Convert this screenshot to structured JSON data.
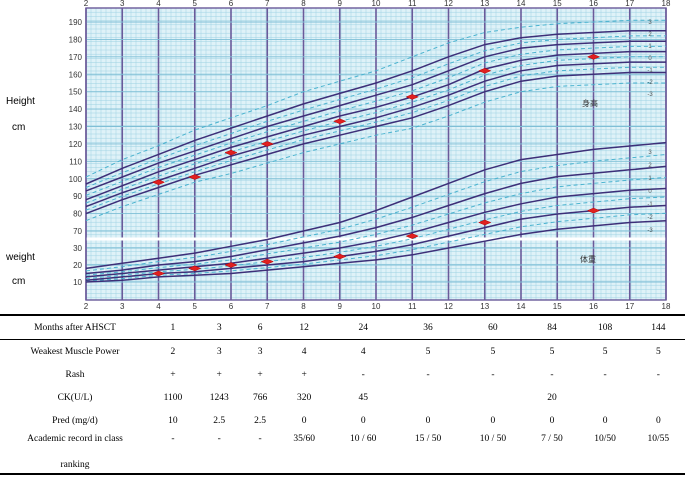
{
  "chart_data": {
    "type": "line",
    "title": "",
    "xlabel": "",
    "x_ticks_top": [
      "2",
      "3",
      "4",
      "5",
      "6",
      "7",
      "8",
      "9",
      "10",
      "11",
      "12",
      "13",
      "14",
      "15",
      "16",
      "17",
      "18"
    ],
    "x_ticks_bottom": [
      "2",
      "3",
      "4",
      "5",
      "6",
      "7",
      "8",
      "9",
      "10",
      "11",
      "12",
      "13",
      "14",
      "15",
      "16",
      "17",
      "18"
    ],
    "xlim": [
      2,
      18
    ],
    "height_axis": {
      "label": "Height",
      "unit": "cm",
      "ticks": [
        "190",
        "180",
        "170",
        "160",
        "150",
        "140",
        "130",
        "120",
        "110",
        "100",
        "90",
        "80",
        "70"
      ],
      "ylim": [
        65,
        200
      ]
    },
    "weight_axis": {
      "label": "weight",
      "unit": "cm",
      "ticks": [
        "30",
        "20",
        "10"
      ],
      "ylim": [
        0,
        40
      ]
    },
    "annotations": [
      "身高",
      "体重"
    ],
    "percentile_labels": [
      "3",
      "2",
      "1",
      "0",
      "-1",
      "-2",
      "-3"
    ],
    "patient_height_points": [
      {
        "x": 4,
        "y": 98
      },
      {
        "x": 5,
        "y": 101
      },
      {
        "x": 6,
        "y": 115
      },
      {
        "x": 7,
        "y": 120
      },
      {
        "x": 9,
        "y": 133
      },
      {
        "x": 11,
        "y": 147
      },
      {
        "x": 13,
        "y": 162
      },
      {
        "x": 16,
        "y": 170
      }
    ],
    "patient_weight_points": [
      {
        "x": 4,
        "y": 15
      },
      {
        "x": 5,
        "y": 18
      },
      {
        "x": 6,
        "y": 20
      },
      {
        "x": 7,
        "y": 22
      },
      {
        "x": 9,
        "y": 25
      },
      {
        "x": 11,
        "y": 37
      },
      {
        "x": 13,
        "y": 45
      },
      {
        "x": 16,
        "y": 52
      }
    ],
    "height_reference_curves": [
      {
        "y": [
          97,
          106,
          114,
          122,
          129,
          136,
          143,
          149,
          155,
          162,
          170,
          177,
          181,
          183,
          184,
          185,
          185
        ]
      },
      {
        "y": [
          93,
          101,
          109,
          116,
          123,
          130,
          136,
          142,
          148,
          154,
          162,
          170,
          175,
          177,
          178,
          179,
          179
        ]
      },
      {
        "y": [
          88,
          96,
          104,
          111,
          118,
          124,
          130,
          136,
          141,
          147,
          154,
          163,
          168,
          171,
          172,
          173,
          173
        ]
      },
      {
        "y": [
          84,
          92,
          99,
          106,
          113,
          119,
          125,
          130,
          135,
          141,
          148,
          156,
          162,
          165,
          166,
          167,
          167
        ]
      },
      {
        "y": [
          80,
          88,
          95,
          102,
          108,
          114,
          120,
          125,
          130,
          135,
          142,
          150,
          156,
          159,
          160,
          161,
          161
        ]
      }
    ],
    "weight_reference_curves": [
      {
        "y": [
          18,
          21,
          24,
          27,
          31,
          35,
          40,
          45,
          52,
          60,
          68,
          76,
          82,
          85,
          88,
          90,
          92
        ]
      },
      {
        "y": [
          15,
          17,
          20,
          22,
          25,
          29,
          33,
          37,
          42,
          48,
          55,
          62,
          68,
          72,
          74,
          76,
          78
        ]
      },
      {
        "y": [
          13,
          15,
          17,
          19,
          21,
          24,
          27,
          30,
          34,
          39,
          45,
          51,
          56,
          60,
          62,
          64,
          65
        ]
      },
      {
        "y": [
          11,
          13,
          15,
          16,
          18,
          20,
          22,
          25,
          28,
          32,
          37,
          42,
          47,
          50,
          52,
          54,
          55
        ]
      },
      {
        "y": [
          10,
          11,
          13,
          14,
          15,
          17,
          19,
          21,
          23,
          26,
          30,
          34,
          38,
          41,
          43,
          45,
          46
        ]
      }
    ],
    "colors": {
      "grid_bg": "#dff2f8",
      "grid_minor": "#9fd2e3",
      "grid_major": "#6a5a9a",
      "curve": "#3d2f78",
      "dashed_curve": "#4bb3cf",
      "marker": "#e02020"
    }
  },
  "table": {
    "header_label": "Months after AHSCT",
    "months": [
      "1",
      "3",
      "6",
      "12",
      "24",
      "36",
      "60",
      "84",
      "108",
      "144"
    ],
    "rows": [
      {
        "label": "Weakest Muscle Power",
        "values": [
          "2",
          "3",
          "3",
          "4",
          "4",
          "5",
          "5",
          "5",
          "5",
          "5"
        ]
      },
      {
        "label": "Rash",
        "values": [
          "+",
          "+",
          "+",
          "+",
          "-",
          "-",
          "-",
          "-",
          "-",
          "-"
        ]
      },
      {
        "label": "CK(U/L)",
        "values": [
          "1100",
          "1243",
          "766",
          "320",
          "45",
          "",
          "",
          "20",
          "",
          ""
        ]
      },
      {
        "label": "Pred (mg/d)",
        "values": [
          "10",
          "2.5",
          "2.5",
          "0",
          "0",
          "0",
          "0",
          "0",
          "0",
          "0"
        ]
      },
      {
        "label": "Academic record in class",
        "values": [
          "-",
          "-",
          "-",
          "35/60",
          "10 / 60",
          "15 / 50",
          "10 / 50",
          "7 / 50",
          "10/50",
          "10/55"
        ]
      }
    ],
    "ranking_label": "ranking"
  }
}
